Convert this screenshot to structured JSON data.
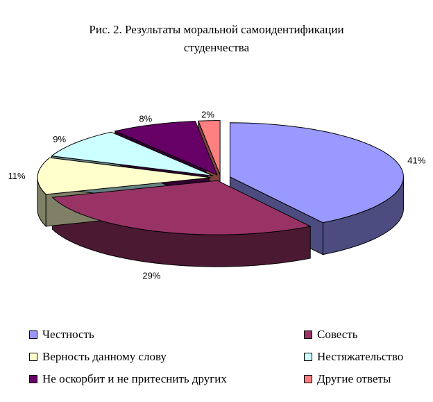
{
  "title_line1": "Рис. 2. Результаты моральной самоидентификации",
  "title_line2": "студенчества",
  "chart_data": {
    "type": "pie",
    "title": "Рис. 2. Результаты моральной самоидентификации студенчества",
    "exploded": true,
    "three_d": true,
    "slices": [
      {
        "name": "Честность",
        "value": 41,
        "label": "41%",
        "color": "#9999ff",
        "side_color": "#4c4c80"
      },
      {
        "name": "Совесть",
        "value": 29,
        "label": "29%",
        "color": "#993366",
        "side_color": "#4c1933"
      },
      {
        "name": "Верность данному слову",
        "value": 11,
        "label": "11%",
        "color": "#ffffcc",
        "side_color": "#808066"
      },
      {
        "name": "Нестяжательство",
        "value": 9,
        "label": "9%",
        "color": "#ccffff",
        "side_color": "#668080"
      },
      {
        "name": "Не оскорбит и не притеснить других",
        "value": 8,
        "label": "8%",
        "color": "#660066",
        "side_color": "#330033"
      },
      {
        "name": "Другие ответы",
        "value": 2,
        "label": "2%",
        "color": "#ff8080",
        "side_color": "#804040"
      }
    ],
    "legend_placement": "bottom"
  },
  "legend": [
    {
      "label": "Честность",
      "color": "#9999ff"
    },
    {
      "label": "Совесть",
      "color": "#993366"
    },
    {
      "label": "Верность данному слову",
      "color": "#ffffcc"
    },
    {
      "label": "Нестяжательство",
      "color": "#ccffff"
    },
    {
      "label": "Не оскорбит и не притеснить других",
      "color": "#660066"
    },
    {
      "label": "Другие ответы",
      "color": "#ff8080"
    }
  ]
}
